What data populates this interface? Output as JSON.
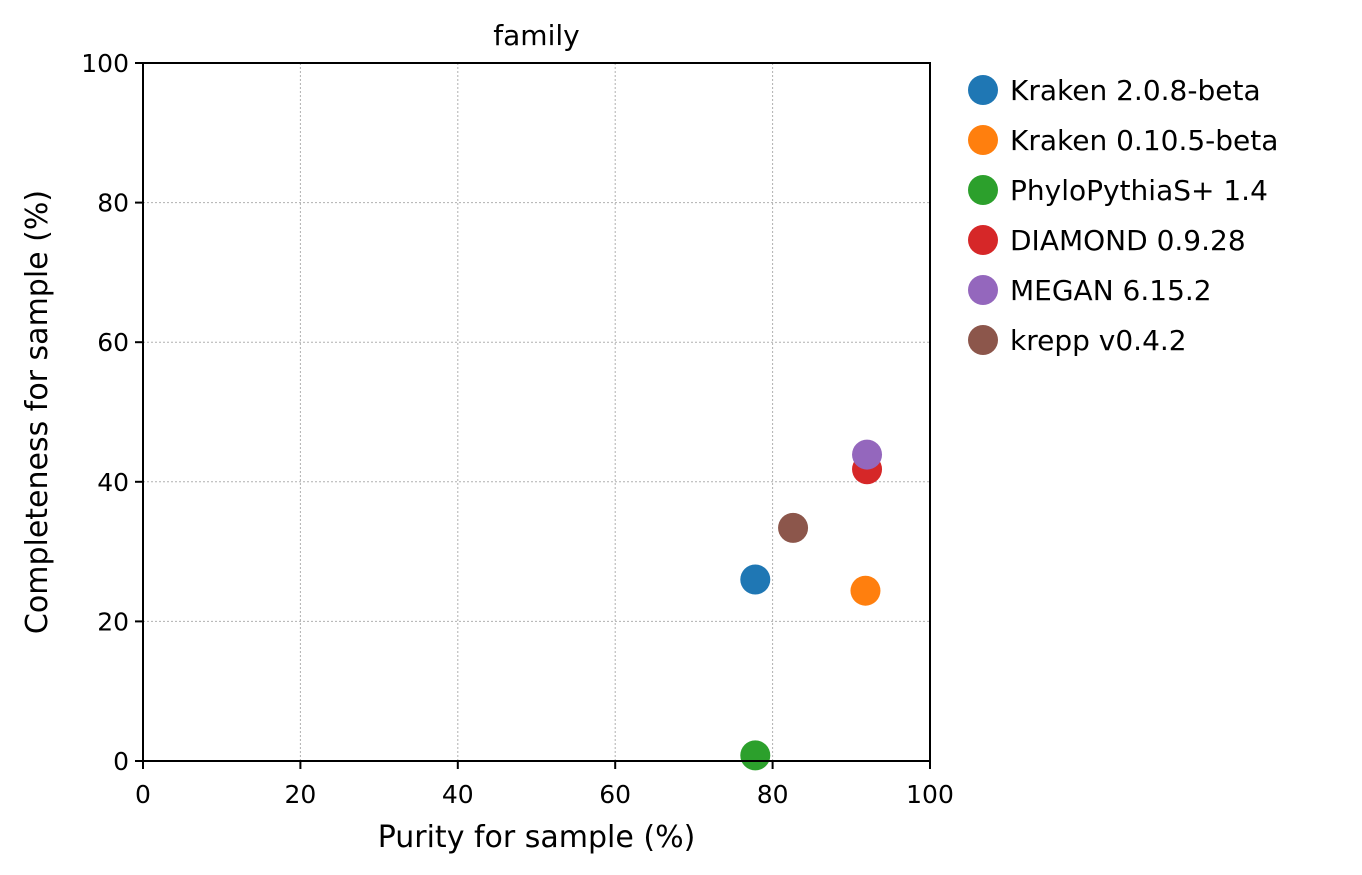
{
  "chart_data": {
    "type": "scatter",
    "title": "family",
    "xlabel": "Purity for sample (%)",
    "ylabel": "Completeness for sample (%)",
    "xlim": [
      0,
      100
    ],
    "ylim": [
      0,
      100
    ],
    "xticks": [
      0,
      20,
      40,
      60,
      80,
      100
    ],
    "yticks": [
      0,
      20,
      40,
      60,
      80,
      100
    ],
    "grid": true,
    "legend_position": "outside-top-right",
    "series": [
      {
        "name": "Kraken 2.0.8-beta",
        "color": "#1f77b4",
        "x": 77.8,
        "y": 26.0
      },
      {
        "name": "Kraken 0.10.5-beta",
        "color": "#ff7f0e",
        "x": 91.8,
        "y": 24.4
      },
      {
        "name": "PhyloPythiaS+ 1.4",
        "color": "#2ca02c",
        "x": 77.8,
        "y": 0.8
      },
      {
        "name": "DIAMOND 0.9.28",
        "color": "#d62728",
        "x": 92.0,
        "y": 41.8
      },
      {
        "name": "MEGAN 6.15.2",
        "color": "#9467bd",
        "x": 92.0,
        "y": 43.9
      },
      {
        "name": "krepp v0.4.2",
        "color": "#8c564b",
        "x": 82.6,
        "y": 33.4
      }
    ]
  }
}
